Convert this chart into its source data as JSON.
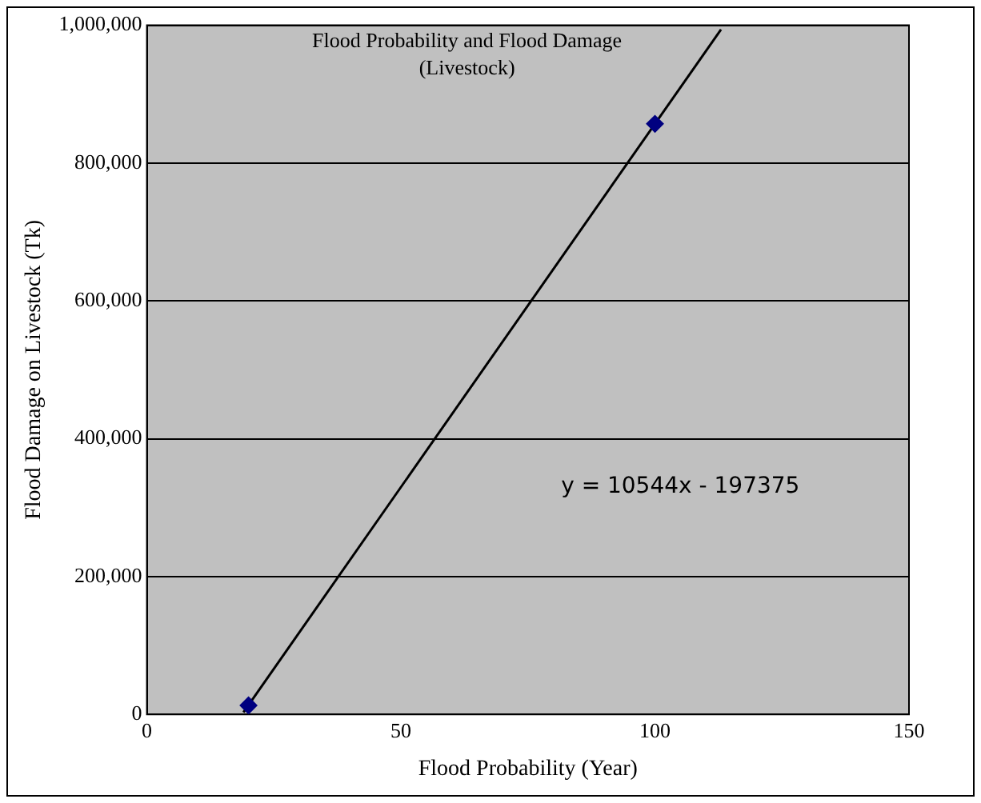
{
  "chart_data": {
    "type": "scatter",
    "title": "Flood Probability and Flood Damage (Livestock)",
    "xlabel": "Flood Probability (Year)",
    "ylabel": "Flood Damage on Livestock (Tk)",
    "series": [
      {
        "type": "scatter",
        "color": "#000080",
        "marker": "diamond",
        "x": [
          20,
          100
        ],
        "values": [
          13000,
          857000
        ]
      },
      {
        "type": "line",
        "color": "#000000",
        "marker": "none",
        "x": [
          19,
          113
        ],
        "values": [
          3000,
          994000
        ]
      }
    ],
    "xlim": [
      0,
      150
    ],
    "xticks": [
      0,
      50,
      100,
      150
    ],
    "ylim": [
      0,
      1000000
    ],
    "yticks": [
      0,
      {
        "value": 200000,
        "label": "200,000"
      },
      {
        "value": 400000,
        "label": "400,000"
      },
      {
        "value": 600000,
        "label": "600,000"
      },
      {
        "value": 800000,
        "label": "800,000"
      },
      {
        "value": 1000000,
        "label": "1,000,000"
      }
    ],
    "grid": "y",
    "legend": false,
    "annotations": [
      "y = 10544x - 197375"
    ]
  }
}
